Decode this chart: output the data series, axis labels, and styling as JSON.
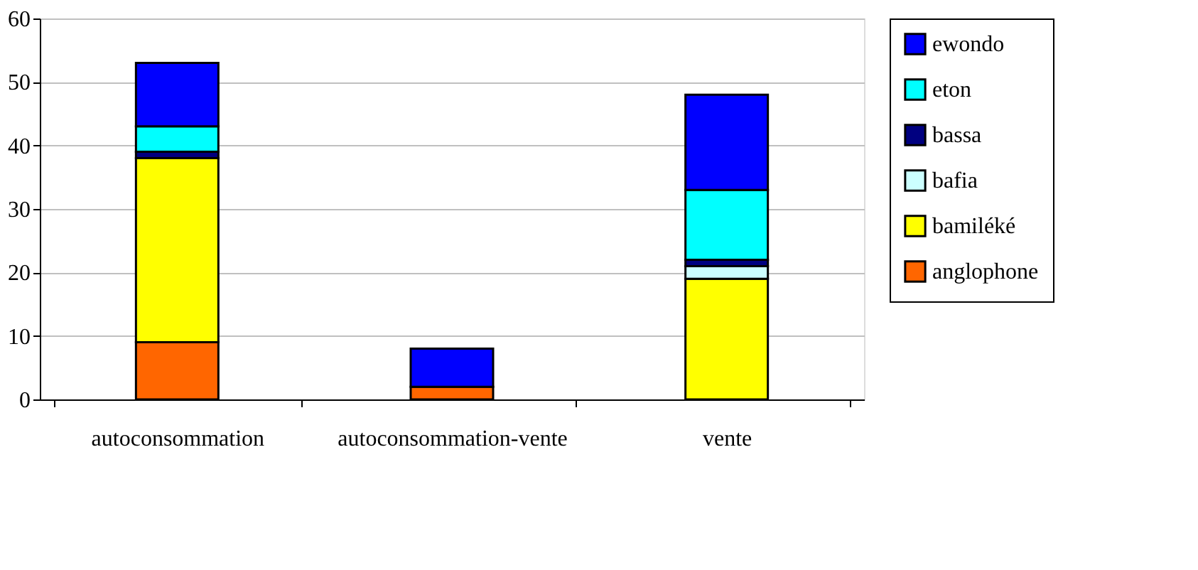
{
  "chart_data": {
    "type": "bar",
    "stacked": true,
    "categories": [
      "autoconsommation",
      "autoconsommation-vente",
      "vente"
    ],
    "series": [
      {
        "name": "anglophone",
        "color": "#ff6600",
        "values": [
          9,
          2,
          null
        ]
      },
      {
        "name": "bamiléké",
        "color": "#ffff00",
        "values": [
          29,
          null,
          19
        ]
      },
      {
        "name": "bafia",
        "color": "#ccffff",
        "values": [
          null,
          null,
          2
        ]
      },
      {
        "name": "bassa",
        "color": "#000080",
        "values": [
          1,
          null,
          1
        ]
      },
      {
        "name": "eton",
        "color": "#00ffff",
        "values": [
          4,
          null,
          11
        ]
      },
      {
        "name": "ewondo",
        "color": "#0000ff",
        "values": [
          10,
          6,
          15
        ]
      }
    ],
    "ylim": [
      0,
      60
    ],
    "yticks": [
      0,
      10,
      20,
      30,
      40,
      50,
      60
    ],
    "grid": "y",
    "legend": "right"
  }
}
